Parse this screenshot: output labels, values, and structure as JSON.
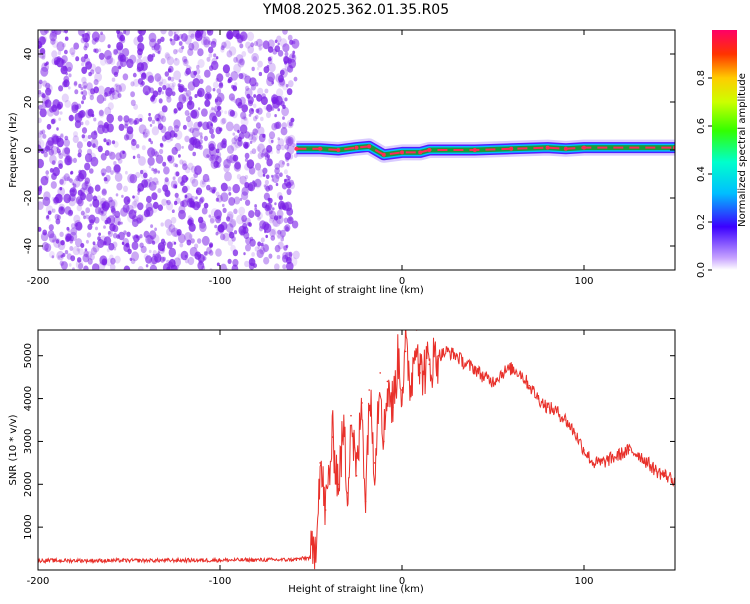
{
  "title": "YM08.2025.362.01.35.R05",
  "colors": {
    "line": "#e8302a",
    "speckle": "#7a1fe6",
    "ridge": "#1a9a3a",
    "ridge_core": "#ff2a55"
  },
  "chart_data": [
    {
      "type": "heatmap",
      "title": "YM08.2025.362.01.35.R05",
      "xlabel": "Height of straight line (km)",
      "ylabel": "Frequency (Hz)",
      "xlim": [
        -200,
        150
      ],
      "ylim": [
        -50,
        50
      ],
      "xticks": [
        -200,
        -100,
        0,
        100
      ],
      "yticks": [
        -40,
        -20,
        0,
        20,
        40
      ],
      "noise_region_x": [
        -200,
        -58
      ],
      "ridge_frequency_hz": 0,
      "ridge": [
        {
          "x": -58,
          "f": 0.5
        },
        {
          "x": -45,
          "f": 0.5
        },
        {
          "x": -35,
          "f": 0
        },
        {
          "x": -25,
          "f": 1
        },
        {
          "x": -18,
          "f": 1.5
        },
        {
          "x": -10,
          "f": -2
        },
        {
          "x": 0,
          "f": -1
        },
        {
          "x": 10,
          "f": -1
        },
        {
          "x": 15,
          "f": 0
        },
        {
          "x": 40,
          "f": 0
        },
        {
          "x": 60,
          "f": 0.5
        },
        {
          "x": 80,
          "f": 1
        },
        {
          "x": 90,
          "f": 0.5
        },
        {
          "x": 100,
          "f": 1
        },
        {
          "x": 150,
          "f": 1
        }
      ],
      "colorbar": {
        "label": "Normalized spectral amplitude",
        "ticks": [
          0.0,
          0.2,
          0.4,
          0.6,
          0.8
        ],
        "tick_labels": [
          "0.0",
          "0.2",
          "0.4",
          "0.6",
          "0.8"
        ],
        "range": [
          0,
          1
        ]
      }
    },
    {
      "type": "line",
      "xlabel": "Height of straight line (km)",
      "ylabel": "SNR (10 * v/v)",
      "xlim": [
        -200,
        150
      ],
      "ylim": [
        0,
        5600
      ],
      "xticks": [
        -200,
        -100,
        0,
        100
      ],
      "yticks": [
        1000,
        2000,
        3000,
        4000,
        5000
      ],
      "series": [
        {
          "name": "SNR",
          "x": [
            -200,
            -150,
            -100,
            -60,
            -48,
            -45,
            -42,
            -38,
            -35,
            -32,
            -30,
            -28,
            -25,
            -22,
            -20,
            -18,
            -15,
            -12,
            -10,
            -8,
            -5,
            -2,
            0,
            2,
            5,
            8,
            10,
            15,
            20,
            25,
            30,
            35,
            40,
            45,
            50,
            55,
            60,
            65,
            70,
            75,
            80,
            85,
            90,
            95,
            100,
            105,
            110,
            115,
            120,
            125,
            130,
            135,
            140,
            145,
            150
          ],
          "values": [
            220,
            220,
            230,
            240,
            300,
            2500,
            1400,
            3100,
            2000,
            3300,
            1800,
            3600,
            2200,
            3900,
            1600,
            4200,
            2500,
            4600,
            3000,
            4400,
            3800,
            5000,
            4200,
            5100,
            4300,
            5600,
            4600,
            4800,
            5000,
            5100,
            5000,
            4800,
            4700,
            4500,
            4400,
            4600,
            4700,
            4600,
            4300,
            4000,
            3800,
            3700,
            3500,
            3200,
            2800,
            2500,
            2500,
            2600,
            2700,
            2800,
            2700,
            2500,
            2300,
            2200,
            2100
          ]
        }
      ]
    }
  ]
}
